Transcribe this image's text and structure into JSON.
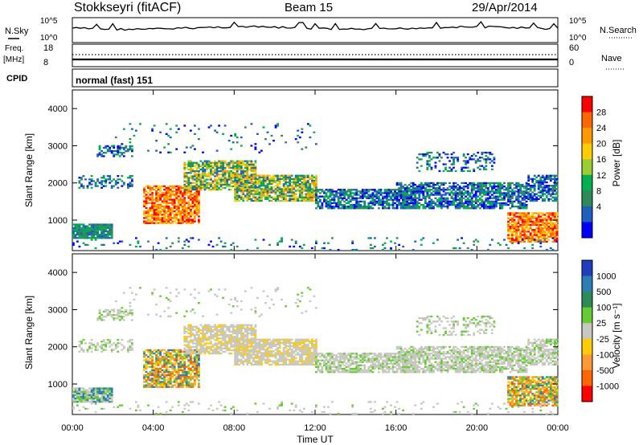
{
  "header": {
    "station": "Stokkseyri (fitACF)",
    "beam": "Beam 15",
    "date": "29/Apr/2014"
  },
  "chart_data": [
    {
      "type": "line",
      "panel": "noise",
      "left_label": "N.Sky",
      "right_label": "N.Search",
      "left_ticks": [
        "10^5",
        "10^0"
      ],
      "right_ticks": [
        "10^5",
        "10^0"
      ],
      "log_scale": true
    },
    {
      "type": "line",
      "panel": "frequency",
      "left_label_top": "Freq.",
      "left_label_bottom": "[MHz]",
      "right_label": "Nave",
      "left_ticks": [
        "18",
        "8"
      ],
      "right_ticks": [
        "60",
        "0"
      ],
      "series": [
        {
          "name": "Freq.",
          "y": 12
        },
        {
          "name": "Nave",
          "y": 30
        }
      ]
    },
    {
      "type": "table",
      "panel": "cpid",
      "label": "CPID",
      "value": "normal (fast) 151"
    },
    {
      "type": "heatmap",
      "panel": "power",
      "ylabel": "Slant Range [km]",
      "y_ticks": [
        "4000",
        "3000",
        "2000",
        "1000"
      ],
      "ylim": [
        180,
        4500
      ],
      "colorbar_label": "Power [dB]",
      "colorbar_ticks": [
        "28",
        "24",
        "20",
        "16",
        "12",
        "8",
        "4"
      ],
      "colorbar_colors": [
        "#ff0000",
        "#ff6600",
        "#ff9900",
        "#ffcc00",
        "#9acd32",
        "#00b050",
        "#2e8b57",
        "#1f5fbf",
        "#0000ff"
      ]
    },
    {
      "type": "heatmap",
      "panel": "velocity",
      "ylabel": "Slant Range [km]",
      "y_ticks": [
        "4000",
        "3000",
        "2000",
        "1000"
      ],
      "ylim": [
        180,
        4500
      ],
      "xlabel": "Time UT",
      "x_ticks": [
        "00:00",
        "04:00",
        "08:00",
        "12:00",
        "16:00",
        "20:00",
        "00:00"
      ],
      "colorbar_label": "Velocity [m s⁻¹]",
      "colorbar_ticks": [
        "1000",
        "500",
        "100",
        "25",
        "-25",
        "-100",
        "-500",
        "-1000"
      ],
      "colorbar_colors": [
        "#1f3fbf",
        "#2e7db5",
        "#2e8b57",
        "#66cc33",
        "#c8c8c0",
        "#ffcc00",
        "#ff9933",
        "#ff6600",
        "#ff0000"
      ]
    }
  ]
}
